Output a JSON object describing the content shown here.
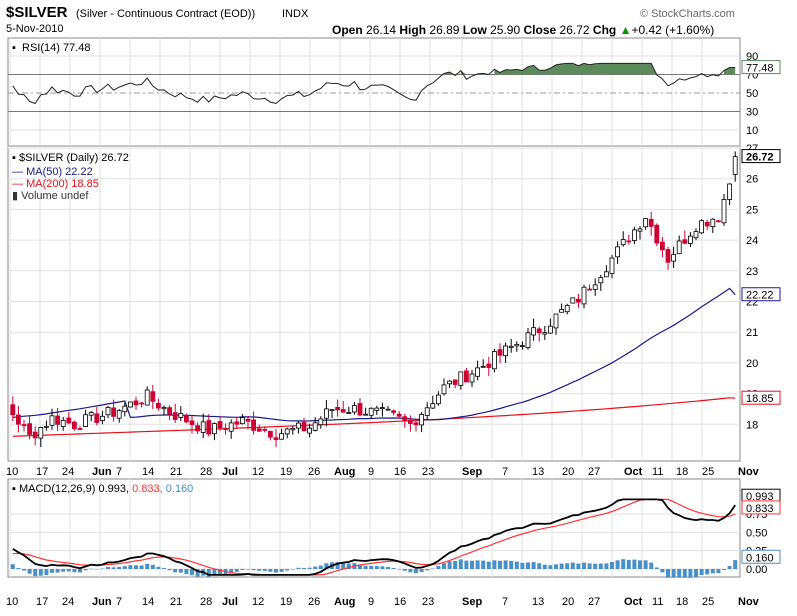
{
  "header": {
    "symbol": "$SILVER",
    "description": "(Silver - Continuous Contract (EOD))",
    "exchange": "INDX",
    "watermark": "© StockCharts.com",
    "date": "5-Nov-2010",
    "open_label": "Open",
    "open": "26.14",
    "high_label": "High",
    "high": "26.89",
    "low_label": "Low",
    "low": "25.90",
    "close_label": "Close",
    "close": "26.72",
    "chg_label": "Chg",
    "chg": "+0.42 (+1.60%)",
    "chg_arrow": "▲"
  },
  "colors": {
    "up": "#000000",
    "down": "#cc0033",
    "ma50": "#1a1a8c",
    "ma200": "#e8101a",
    "rsi_fill": "#5c8a5c",
    "macd": "#000000",
    "signal": "#ff3333",
    "hist": "#4a90c8"
  },
  "rsi_panel": {
    "legend": "RSI(14) 77.48",
    "current_label": "77.48",
    "ticks": [
      "90",
      "70",
      "50",
      "30",
      "10"
    ]
  },
  "price_panel": {
    "legend_main": "$SILVER (Daily) 26.72",
    "legend_ma50": "MA(50) 22.22",
    "legend_ma200": "MA(200) 18.85",
    "legend_volume": "Volume undef",
    "last_label": "26.72",
    "ma50_label": "22.22",
    "ma200_label": "18.85",
    "ticks": [
      "27",
      "26",
      "25",
      "24",
      "23",
      "22",
      "21",
      "20",
      "19",
      "18"
    ]
  },
  "macd_panel": {
    "legend_name": "MACD(12,26,9)",
    "legend_macd": "0.993,",
    "legend_signal": "0.833,",
    "legend_hist": "0.160",
    "macd_label": "0.993",
    "signal_label": "0.833",
    "hist_label": "0.160",
    "ticks": [
      "0.75",
      "0.50",
      "0.25",
      "0.00"
    ]
  },
  "x_labels": [
    "10",
    "17",
    "24",
    "Jun",
    "7",
    "14",
    "21",
    "28",
    "Jul",
    "12",
    "19",
    "26",
    "Aug",
    "9",
    "16",
    "23",
    "Sep",
    "7",
    "13",
    "20",
    "27",
    "Oct",
    "11",
    "18",
    "25",
    "Nov"
  ],
  "chart_data": {
    "type": "candlestick",
    "title": "$SILVER (Silver - Continuous Contract (EOD))",
    "period": "daily",
    "date_range": [
      "2010-05-10",
      "2010-11-05"
    ],
    "last": {
      "date": "5-Nov-2010",
      "open": 26.14,
      "high": 26.89,
      "low": 25.9,
      "close": 26.72
    },
    "ylim": [
      17.2,
      27.2
    ],
    "weekly_close_approx": [
      {
        "week": "May 10",
        "close": 18.8
      },
      {
        "week": "May 17",
        "close": 19.0
      },
      {
        "week": "May 24",
        "close": 17.8
      },
      {
        "week": "Jun 7",
        "close": 18.0
      },
      {
        "week": "Jun 14",
        "close": 18.5
      },
      {
        "week": "Jun 21",
        "close": 18.6
      },
      {
        "week": "Jun 28",
        "close": 18.9
      },
      {
        "week": "Jul 12",
        "close": 18.0
      },
      {
        "week": "Jul 19",
        "close": 18.1
      },
      {
        "week": "Jul 26",
        "close": 17.9
      },
      {
        "week": "Aug 9",
        "close": 18.5
      },
      {
        "week": "Aug 16",
        "close": 18.2
      },
      {
        "week": "Aug 23",
        "close": 18.4
      },
      {
        "week": "Sep 7",
        "close": 19.6
      },
      {
        "week": "Sep 13",
        "close": 20.2
      },
      {
        "week": "Sep 20",
        "close": 20.9
      },
      {
        "week": "Sep 27",
        "close": 21.8
      },
      {
        "week": "Oct 11",
        "close": 24.0
      },
      {
        "week": "Oct 18",
        "close": 23.5
      },
      {
        "week": "Oct 25",
        "close": 24.6
      },
      {
        "week": "Nov",
        "close": 26.72
      }
    ],
    "series": [
      {
        "name": "MA(50)",
        "last": 22.22
      },
      {
        "name": "MA(200)",
        "last": 18.85
      },
      {
        "name": "RSI(14)",
        "last": 77.48
      },
      {
        "name": "MACD(12,26,9)",
        "macd": 0.993,
        "signal": 0.833,
        "histogram": 0.16
      }
    ]
  }
}
